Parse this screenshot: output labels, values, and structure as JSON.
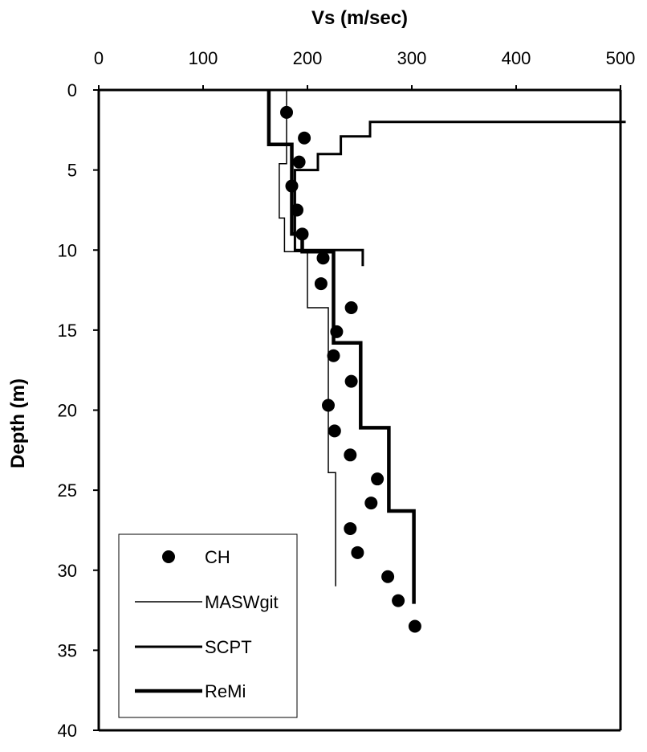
{
  "chart_data": {
    "type": "line",
    "title": "",
    "xlabel": "Vs (m/sec)",
    "ylabel": "Depth (m)",
    "xlim": [
      0,
      500
    ],
    "ylim": [
      0,
      40
    ],
    "y_inverted": true,
    "x_axis_position": "top",
    "x_ticks": [
      0,
      100,
      200,
      300,
      400,
      500
    ],
    "y_ticks": [
      0,
      5,
      10,
      15,
      20,
      25,
      30,
      35,
      40
    ],
    "grid": false,
    "legend_position": "bottom-left",
    "series": [
      {
        "name": "CH",
        "style": "markers",
        "points": [
          [
            180,
            1.4
          ],
          [
            197,
            3.0
          ],
          [
            192,
            4.5
          ],
          [
            185,
            6.0
          ],
          [
            190,
            7.5
          ],
          [
            195,
            9.0
          ],
          [
            215,
            10.5
          ],
          [
            213,
            12.1
          ],
          [
            242,
            13.6
          ],
          [
            228,
            15.1
          ],
          [
            225,
            16.6
          ],
          [
            242,
            18.2
          ],
          [
            220,
            19.7
          ],
          [
            226,
            21.3
          ],
          [
            241,
            22.8
          ],
          [
            267,
            24.3
          ],
          [
            261,
            25.8
          ],
          [
            241,
            27.4
          ],
          [
            248,
            28.9
          ],
          [
            277,
            30.4
          ],
          [
            287,
            31.9
          ],
          [
            303,
            33.5
          ]
        ]
      },
      {
        "name": "MASWgit ",
        "style": "thin-line",
        "points": [
          [
            180,
            0
          ],
          [
            180,
            4.6
          ],
          [
            173,
            4.6
          ],
          [
            173,
            8
          ],
          [
            178,
            8
          ],
          [
            178,
            10.1
          ],
          [
            200,
            10.1
          ],
          [
            200,
            13.6
          ],
          [
            220,
            13.6
          ],
          [
            220,
            23.9
          ],
          [
            227,
            23.9
          ],
          [
            227,
            31
          ]
        ]
      },
      {
        "name": "SCPT",
        "style": "medium-line",
        "points": [
          [
            505,
            2
          ],
          [
            260,
            2
          ],
          [
            260,
            2.9
          ],
          [
            232,
            2.9
          ],
          [
            232,
            4
          ],
          [
            210,
            4
          ],
          [
            210,
            5
          ],
          [
            188,
            5
          ],
          [
            188,
            10
          ],
          [
            253,
            10
          ],
          [
            253,
            11
          ]
        ]
      },
      {
        "name": "ReMi",
        "style": "thick-line",
        "points": [
          [
            163,
            0
          ],
          [
            163,
            3.4
          ],
          [
            185,
            3.4
          ],
          [
            185,
            9
          ],
          [
            195,
            9
          ],
          [
            195,
            10.1
          ],
          [
            225,
            10.1
          ],
          [
            225,
            15.8
          ],
          [
            251,
            15.8
          ],
          [
            251,
            21.1
          ],
          [
            278,
            21.1
          ],
          [
            278,
            26.3
          ],
          [
            302,
            26.3
          ],
          [
            302,
            32.1
          ]
        ]
      }
    ]
  }
}
